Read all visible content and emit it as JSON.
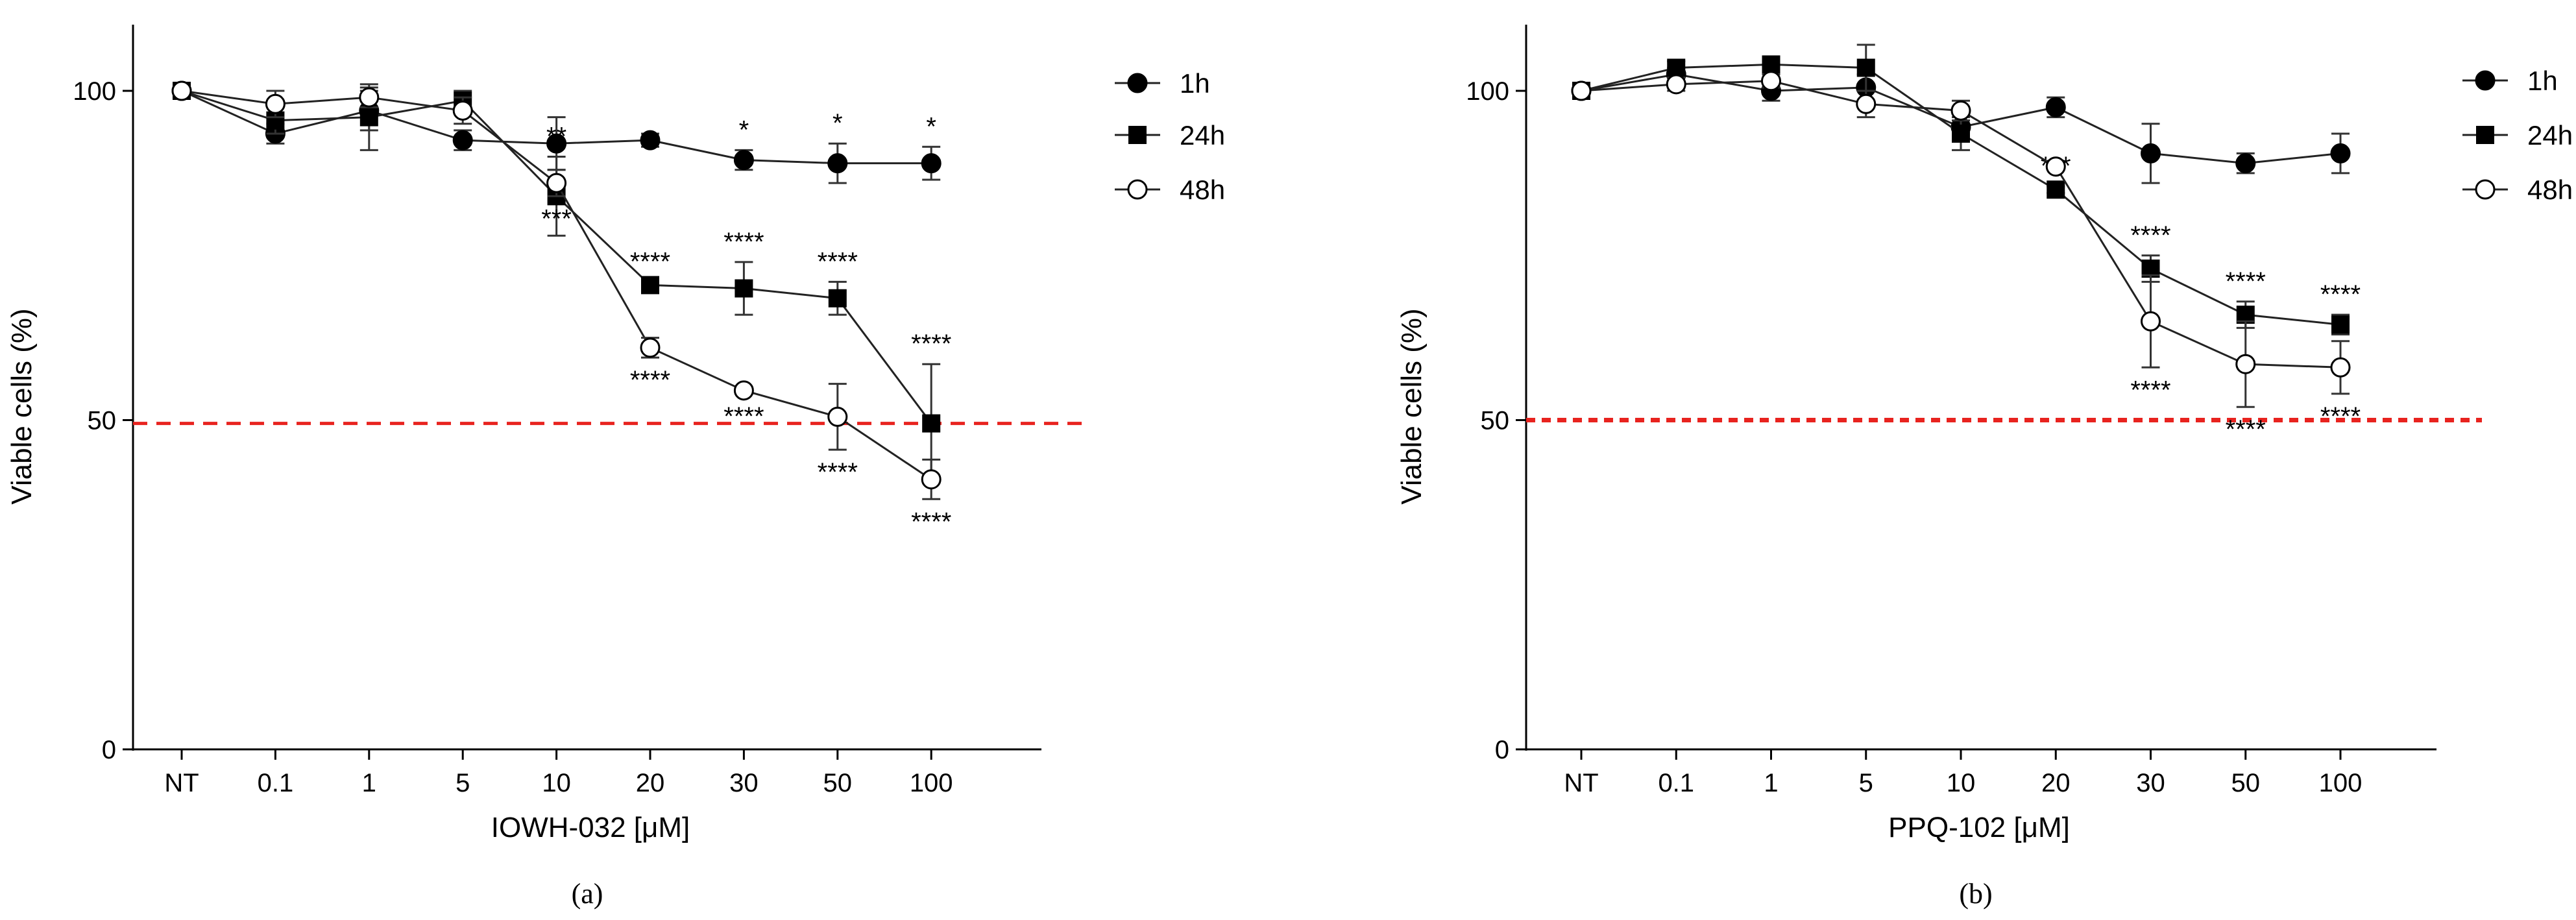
{
  "chart_data": [
    {
      "type": "line",
      "panel_label": "(a)",
      "xlabel": "IOWH-032 [μM]",
      "ylabel": "Viable cells (%)",
      "categories": [
        "NT",
        "0.1",
        "1",
        "5",
        "10",
        "20",
        "30",
        "50",
        "100"
      ],
      "ylim": [
        0,
        110
      ],
      "yticks": [
        0,
        50,
        100
      ],
      "reference_line": {
        "y": 49.5,
        "color": "#e8231f",
        "style": "dashed"
      },
      "legend_position": "top-right",
      "series": [
        {
          "name": "1h",
          "marker": "filled-circle",
          "values": [
            100,
            93.5,
            97,
            92.5,
            92,
            92.5,
            89.5,
            89,
            89
          ],
          "errors": [
            0,
            1.5,
            3,
            1.5,
            4,
            1,
            1.5,
            3,
            2.5
          ],
          "annotations": [
            "",
            "",
            "",
            "",
            "",
            "",
            "*",
            "*",
            "*"
          ]
        },
        {
          "name": "24h",
          "marker": "filled-square",
          "values": [
            100,
            95.5,
            96,
            98.5,
            84,
            70.5,
            70,
            68.5,
            49.5
          ],
          "errors": [
            0,
            2,
            5,
            1.5,
            6,
            0.5,
            4,
            2.5,
            9
          ],
          "annotations": [
            "",
            "",
            "",
            "",
            "**",
            "****",
            "****",
            "****",
            "****"
          ]
        },
        {
          "name": "48h",
          "marker": "open-circle",
          "values": [
            100,
            98,
            99,
            97,
            86,
            61,
            54.5,
            50.5,
            41
          ],
          "errors": [
            0,
            2,
            1.5,
            2,
            2,
            1.5,
            0.5,
            5,
            3
          ],
          "annotations": [
            "",
            "",
            "",
            "",
            "***",
            "****",
            "****",
            "****",
            "****"
          ]
        }
      ]
    },
    {
      "type": "line",
      "panel_label": "(b)",
      "xlabel": "PPQ-102 [μM]",
      "ylabel": "Viable cells (%)",
      "categories": [
        "NT",
        "0.1",
        "1",
        "5",
        "10",
        "20",
        "30",
        "50",
        "100"
      ],
      "ylim": [
        0,
        110
      ],
      "yticks": [
        0,
        50,
        100
      ],
      "reference_line": {
        "y": 50,
        "color": "#e8231f",
        "style": "dashed"
      },
      "legend_position": "top-right",
      "series": [
        {
          "name": "1h",
          "marker": "filled-circle",
          "values": [
            100,
            102.5,
            100,
            100.5,
            94.5,
            97.5,
            90.5,
            89,
            90.5
          ],
          "errors": [
            0,
            1,
            1.5,
            2,
            2,
            1.5,
            4.5,
            1.5,
            3
          ],
          "annotations": [
            "",
            "",
            "",
            "",
            "",
            "",
            "",
            "",
            ""
          ]
        },
        {
          "name": "24h",
          "marker": "filled-square",
          "values": [
            100,
            103.5,
            104,
            103.5,
            93.5,
            85,
            73,
            66,
            64.5
          ],
          "errors": [
            0,
            1,
            1,
            3.5,
            2.5,
            0.5,
            2,
            2,
            1.5
          ],
          "annotations": [
            "",
            "",
            "",
            "",
            "",
            "***",
            "****",
            "****",
            "****"
          ]
        },
        {
          "name": "48h",
          "marker": "open-circle",
          "values": [
            100,
            101,
            101.5,
            98,
            97,
            88.5,
            65,
            58.5,
            58
          ],
          "errors": [
            0,
            1,
            1,
            2,
            1.5,
            0.5,
            7,
            6.5,
            4
          ],
          "annotations": [
            "",
            "",
            "",
            "",
            "",
            "*",
            "****",
            "****",
            "****"
          ]
        }
      ]
    }
  ]
}
